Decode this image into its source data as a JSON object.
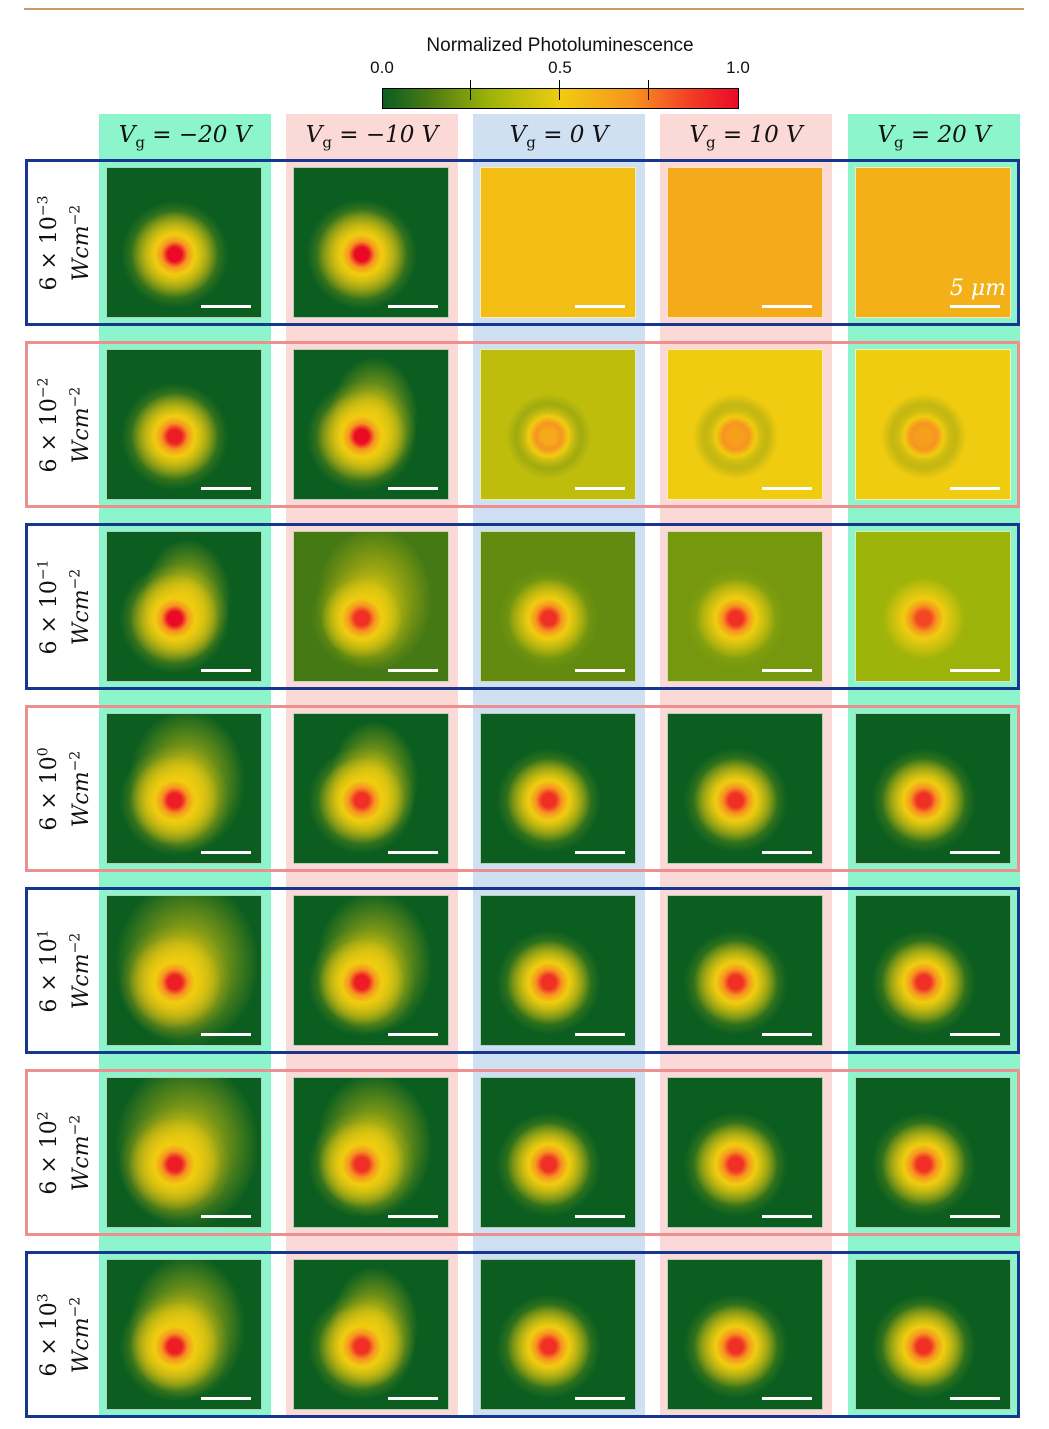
{
  "colorbar": {
    "title": "Normalized Photoluminescence",
    "ticks": [
      "0.0",
      "0.5",
      "1.0"
    ]
  },
  "columns": [
    {
      "prefix": "V",
      "sub": "g",
      "value": " = −20 V",
      "band": "#8cf5cb"
    },
    {
      "prefix": "V",
      "sub": "g",
      "value": " = −10 V",
      "band": "#fbd9d7"
    },
    {
      "prefix": "V",
      "sub": "g",
      "value": " = 0 V",
      "band": "#cfe0f3"
    },
    {
      "prefix": "V",
      "sub": "g",
      "value": " = 10 V",
      "band": "#fbd9d7"
    },
    {
      "prefix": "V",
      "sub": "g",
      "value": " = 20 V",
      "band": "#8cf5cb"
    }
  ],
  "rows": [
    {
      "base": "6 × 10",
      "exp": "−3",
      "unit": "Wcm",
      "unit_exp": "−2",
      "frame": "blue"
    },
    {
      "base": "6 × 10",
      "exp": "−2",
      "unit": "Wcm",
      "unit_exp": "−2",
      "frame": "pink"
    },
    {
      "base": "6 × 10",
      "exp": "−1",
      "unit": "Wcm",
      "unit_exp": "−2",
      "frame": "blue"
    },
    {
      "base": "6 × 10",
      "exp": "0",
      "unit": "Wcm",
      "unit_exp": "−2",
      "frame": "pink"
    },
    {
      "base": "6 × 10",
      "exp": "1",
      "unit": "Wcm",
      "unit_exp": "−2",
      "frame": "blue"
    },
    {
      "base": "6 × 10",
      "exp": "2",
      "unit": "Wcm",
      "unit_exp": "−2",
      "frame": "pink"
    },
    {
      "base": "6 × 10",
      "exp": "3",
      "unit": "Wcm",
      "unit_exp": "−2",
      "frame": "blue"
    }
  ],
  "scale_bar_label": "5 μm",
  "panels": [
    [
      {
        "bg": 0.0,
        "core": 1.0,
        "halo": 0.45,
        "ext": 0
      },
      {
        "bg": 0.0,
        "core": 1.0,
        "halo": 0.5,
        "ext": 0
      },
      {
        "bg": 0.55,
        "core": 0,
        "halo": 0,
        "ext": 0
      },
      {
        "bg": 0.62,
        "core": 0,
        "halo": 0,
        "ext": 0
      },
      {
        "bg": 0.6,
        "core": 0,
        "halo": 0,
        "ext": 0
      }
    ],
    [
      {
        "bg": 0.0,
        "core": 0.95,
        "halo": 0.45,
        "ext": 0
      },
      {
        "bg": 0.0,
        "core": 1.0,
        "halo": 0.5,
        "ext": 1
      },
      {
        "bg": 0.38,
        "core": 0.62,
        "halo": 0.1,
        "ext": 0
      },
      {
        "bg": 0.5,
        "core": 0.66,
        "halo": 0.1,
        "ext": 0
      },
      {
        "bg": 0.5,
        "core": 0.66,
        "halo": 0.1,
        "ext": 0
      }
    ],
    [
      {
        "bg": 0.0,
        "core": 1.0,
        "halo": 0.5,
        "ext": 1
      },
      {
        "bg": 0.12,
        "core": 0.9,
        "halo": 0.35,
        "ext": 2
      },
      {
        "bg": 0.18,
        "core": 0.9,
        "halo": 0.35,
        "ext": 0
      },
      {
        "bg": 0.22,
        "core": 0.9,
        "halo": 0.35,
        "ext": 0
      },
      {
        "bg": 0.3,
        "core": 0.85,
        "halo": 0.35,
        "ext": 0
      }
    ],
    [
      {
        "bg": 0.0,
        "core": 0.95,
        "halo": 0.5,
        "ext": 2
      },
      {
        "bg": 0.0,
        "core": 0.9,
        "halo": 0.45,
        "ext": 1
      },
      {
        "bg": 0.0,
        "core": 0.9,
        "halo": 0.4,
        "ext": 0
      },
      {
        "bg": 0.0,
        "core": 0.9,
        "halo": 0.4,
        "ext": 0
      },
      {
        "bg": 0.0,
        "core": 0.9,
        "halo": 0.4,
        "ext": 0
      }
    ],
    [
      {
        "bg": 0.0,
        "core": 0.95,
        "halo": 0.55,
        "ext": 3
      },
      {
        "bg": 0.0,
        "core": 0.95,
        "halo": 0.45,
        "ext": 2
      },
      {
        "bg": 0.0,
        "core": 0.9,
        "halo": 0.4,
        "ext": 0
      },
      {
        "bg": 0.0,
        "core": 0.9,
        "halo": 0.4,
        "ext": 0
      },
      {
        "bg": 0.0,
        "core": 0.9,
        "halo": 0.4,
        "ext": 0
      }
    ],
    [
      {
        "bg": 0.0,
        "core": 0.95,
        "halo": 0.55,
        "ext": 3
      },
      {
        "bg": 0.0,
        "core": 0.9,
        "halo": 0.45,
        "ext": 2
      },
      {
        "bg": 0.0,
        "core": 0.9,
        "halo": 0.4,
        "ext": 0
      },
      {
        "bg": 0.0,
        "core": 0.9,
        "halo": 0.4,
        "ext": 0
      },
      {
        "bg": 0.0,
        "core": 0.9,
        "halo": 0.4,
        "ext": 0
      }
    ],
    [
      {
        "bg": 0.0,
        "core": 0.95,
        "halo": 0.5,
        "ext": 2
      },
      {
        "bg": 0.0,
        "core": 0.9,
        "halo": 0.45,
        "ext": 1
      },
      {
        "bg": 0.0,
        "core": 0.9,
        "halo": 0.4,
        "ext": 0
      },
      {
        "bg": 0.0,
        "core": 0.9,
        "halo": 0.4,
        "ext": 0
      },
      {
        "bg": 0.0,
        "core": 0.9,
        "halo": 0.4,
        "ext": 0
      }
    ]
  ]
}
